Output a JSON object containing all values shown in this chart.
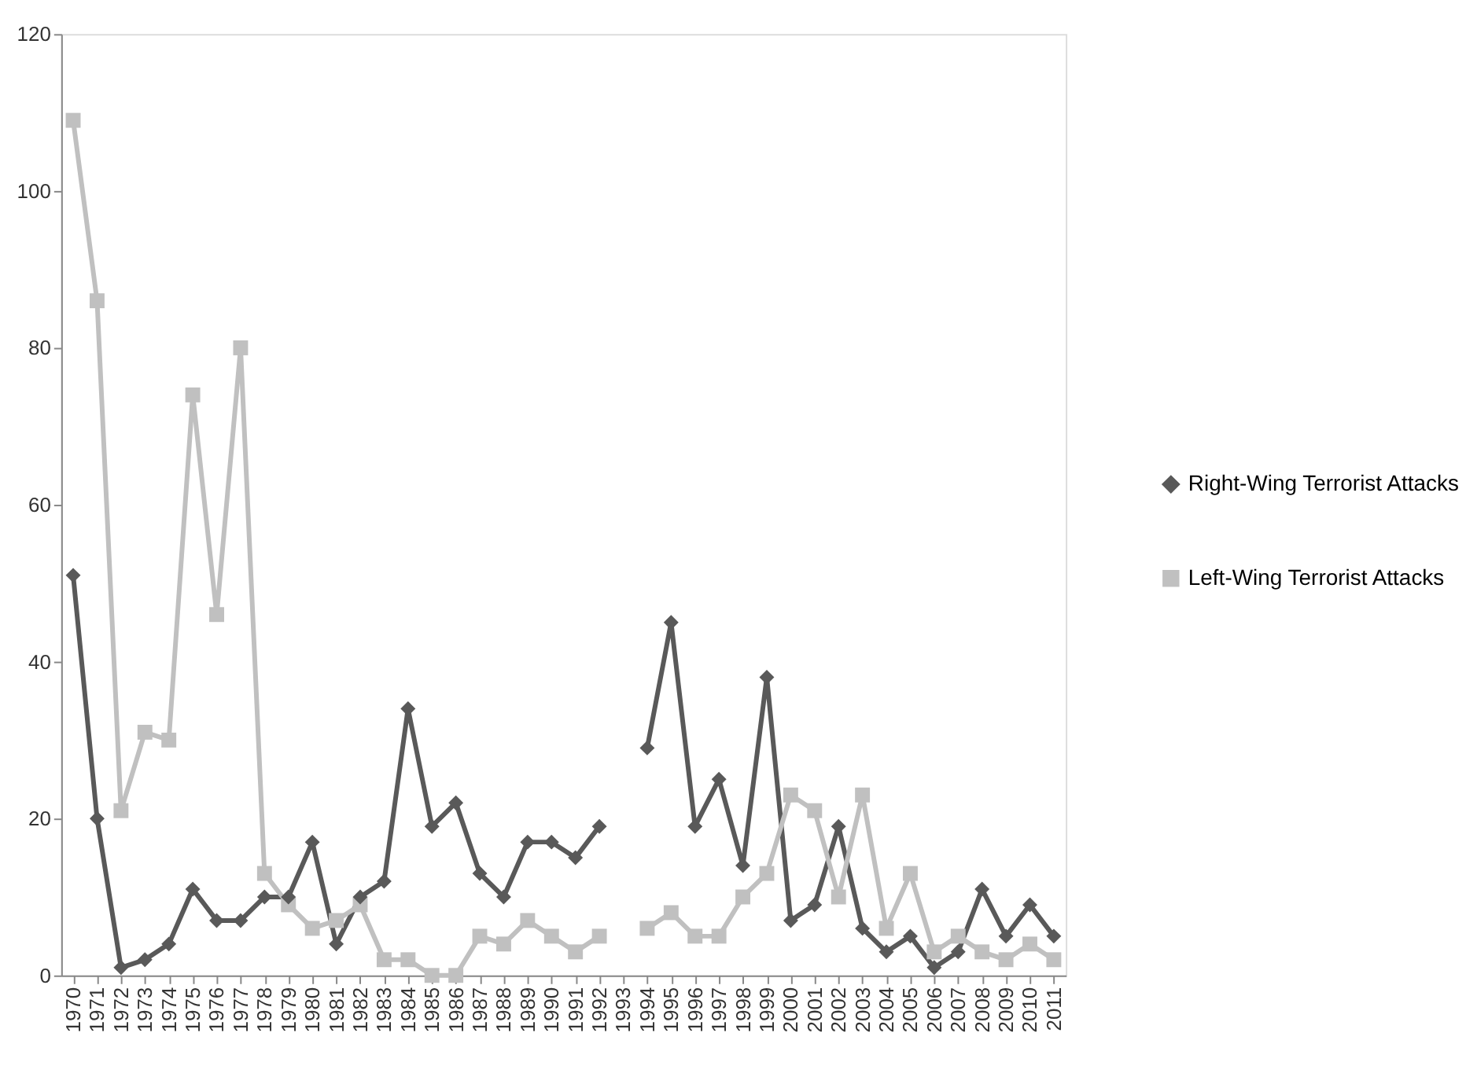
{
  "chart_data": {
    "type": "line",
    "categories": [
      "1970",
      "1971",
      "1972",
      "1973",
      "1974",
      "1975",
      "1976",
      "1977",
      "1978",
      "1979",
      "1980",
      "1981",
      "1982",
      "1983",
      "1984",
      "1985",
      "1986",
      "1987",
      "1988",
      "1989",
      "1990",
      "1991",
      "1992",
      "1993",
      "1994",
      "1995",
      "1996",
      "1997",
      "1998",
      "1999",
      "2000",
      "2001",
      "2002",
      "2003",
      "2004",
      "2005",
      "2006",
      "2007",
      "2008",
      "2009",
      "2010",
      "2011"
    ],
    "series": [
      {
        "name": "Right-Wing Terrorist Attacks",
        "color": "#595959",
        "marker": "diamond",
        "values": [
          51,
          20,
          1,
          2,
          4,
          11,
          7,
          7,
          10,
          10,
          17,
          4,
          10,
          12,
          34,
          19,
          22,
          13,
          10,
          17,
          17,
          15,
          19,
          null,
          29,
          45,
          19,
          25,
          14,
          38,
          7,
          9,
          19,
          6,
          3,
          5,
          1,
          3,
          11,
          5,
          9,
          5
        ]
      },
      {
        "name": "Left-Wing Terrorist Attacks",
        "color": "#c0c0c0",
        "marker": "square",
        "values": [
          109,
          86,
          21,
          31,
          30,
          74,
          46,
          80,
          13,
          9,
          6,
          7,
          9,
          2,
          2,
          0,
          0,
          5,
          4,
          7,
          5,
          3,
          5,
          null,
          6,
          8,
          5,
          5,
          10,
          13,
          23,
          21,
          10,
          23,
          6,
          13,
          3,
          5,
          3,
          2,
          4,
          2
        ]
      }
    ],
    "ylim": [
      0,
      120
    ],
    "yticks": [
      0,
      20,
      40,
      60,
      80,
      100,
      120
    ],
    "grid": false,
    "legend": "right",
    "line_style": "solid"
  }
}
